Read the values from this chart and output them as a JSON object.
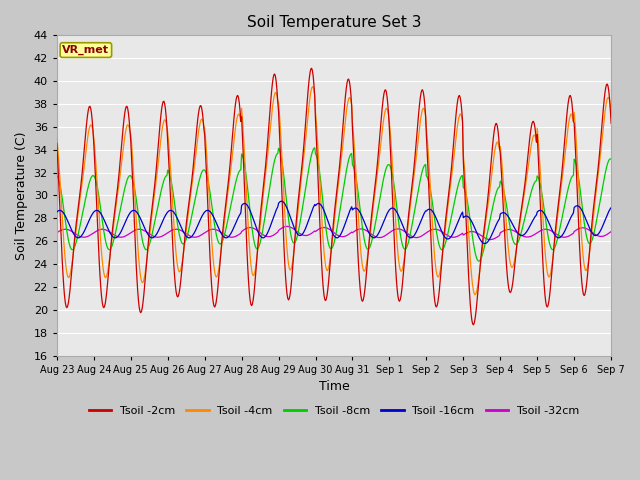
{
  "title": "Soil Temperature Set 3",
  "xlabel": "Time",
  "ylabel": "Soil Temperature (C)",
  "ylim": [
    16,
    44
  ],
  "annotation": "VR_met",
  "legend_labels": [
    "Tsoil -2cm",
    "Tsoil -4cm",
    "Tsoil -8cm",
    "Tsoil -16cm",
    "Tsoil -32cm"
  ],
  "line_colors": [
    "#cc0000",
    "#ff8800",
    "#00cc00",
    "#0000cc",
    "#cc00cc"
  ],
  "xtick_labels": [
    "Aug 23",
    "Aug 24",
    "Aug 25",
    "Aug 26",
    "Aug 27",
    "Aug 28",
    "Aug 29",
    "Aug 30",
    "Aug 31",
    "Sep 1",
    "Sep 2",
    "Sep 3",
    "Sep 4",
    "Sep 5",
    "Sep 6",
    "Sep 7"
  ],
  "plot_bg_color": "#e8e8e8",
  "fig_bg_color": "#c8c8c8",
  "yticks": [
    16,
    18,
    20,
    22,
    24,
    26,
    28,
    30,
    32,
    34,
    36,
    38,
    40,
    42,
    44
  ],
  "n_days": 15,
  "n_per_day": 48,
  "amp_2cm": [
    10.0,
    10.0,
    10.5,
    9.5,
    10.5,
    11.5,
    11.5,
    11.0,
    10.5,
    10.5,
    10.5,
    10.0,
    8.5,
    10.5,
    10.5
  ],
  "base_2cm": [
    29.0,
    29.0,
    29.0,
    29.5,
    29.5,
    30.5,
    31.0,
    30.5,
    30.0,
    30.0,
    29.5,
    27.5,
    29.0,
    29.5,
    30.5
  ],
  "amp_4cm": [
    7.5,
    7.5,
    8.0,
    7.5,
    8.0,
    9.0,
    9.0,
    8.5,
    8.0,
    8.0,
    8.0,
    7.5,
    6.5,
    8.0,
    8.5
  ],
  "base_4cm": [
    29.5,
    29.5,
    29.5,
    30.0,
    30.0,
    31.0,
    31.5,
    31.0,
    30.5,
    30.5,
    30.0,
    28.0,
    29.5,
    30.0,
    31.0
  ],
  "amp_8cm": [
    3.5,
    3.5,
    3.5,
    3.5,
    3.5,
    4.5,
    4.5,
    4.5,
    4.0,
    4.0,
    3.5,
    3.5,
    3.0,
    3.5,
    4.0
  ],
  "base_8cm": [
    28.5,
    28.5,
    28.5,
    29.0,
    29.0,
    29.5,
    30.0,
    29.5,
    29.0,
    29.0,
    28.5,
    27.5,
    28.5,
    28.5,
    29.5
  ],
  "amp_16cm": [
    1.2,
    1.2,
    1.2,
    1.2,
    1.2,
    1.5,
    1.5,
    1.5,
    1.3,
    1.3,
    1.3,
    1.2,
    1.0,
    1.2,
    1.3
  ],
  "base_16cm": [
    27.5,
    27.5,
    27.5,
    27.5,
    27.5,
    27.8,
    28.0,
    27.8,
    27.6,
    27.6,
    27.5,
    27.0,
    27.5,
    27.5,
    27.8
  ],
  "amp_32cm": [
    0.35,
    0.35,
    0.35,
    0.35,
    0.35,
    0.4,
    0.4,
    0.4,
    0.38,
    0.38,
    0.35,
    0.35,
    0.33,
    0.35,
    0.38
  ],
  "base_32cm": [
    26.7,
    26.7,
    26.7,
    26.7,
    26.7,
    26.8,
    26.9,
    26.8,
    26.7,
    26.7,
    26.7,
    26.5,
    26.7,
    26.7,
    26.8
  ]
}
